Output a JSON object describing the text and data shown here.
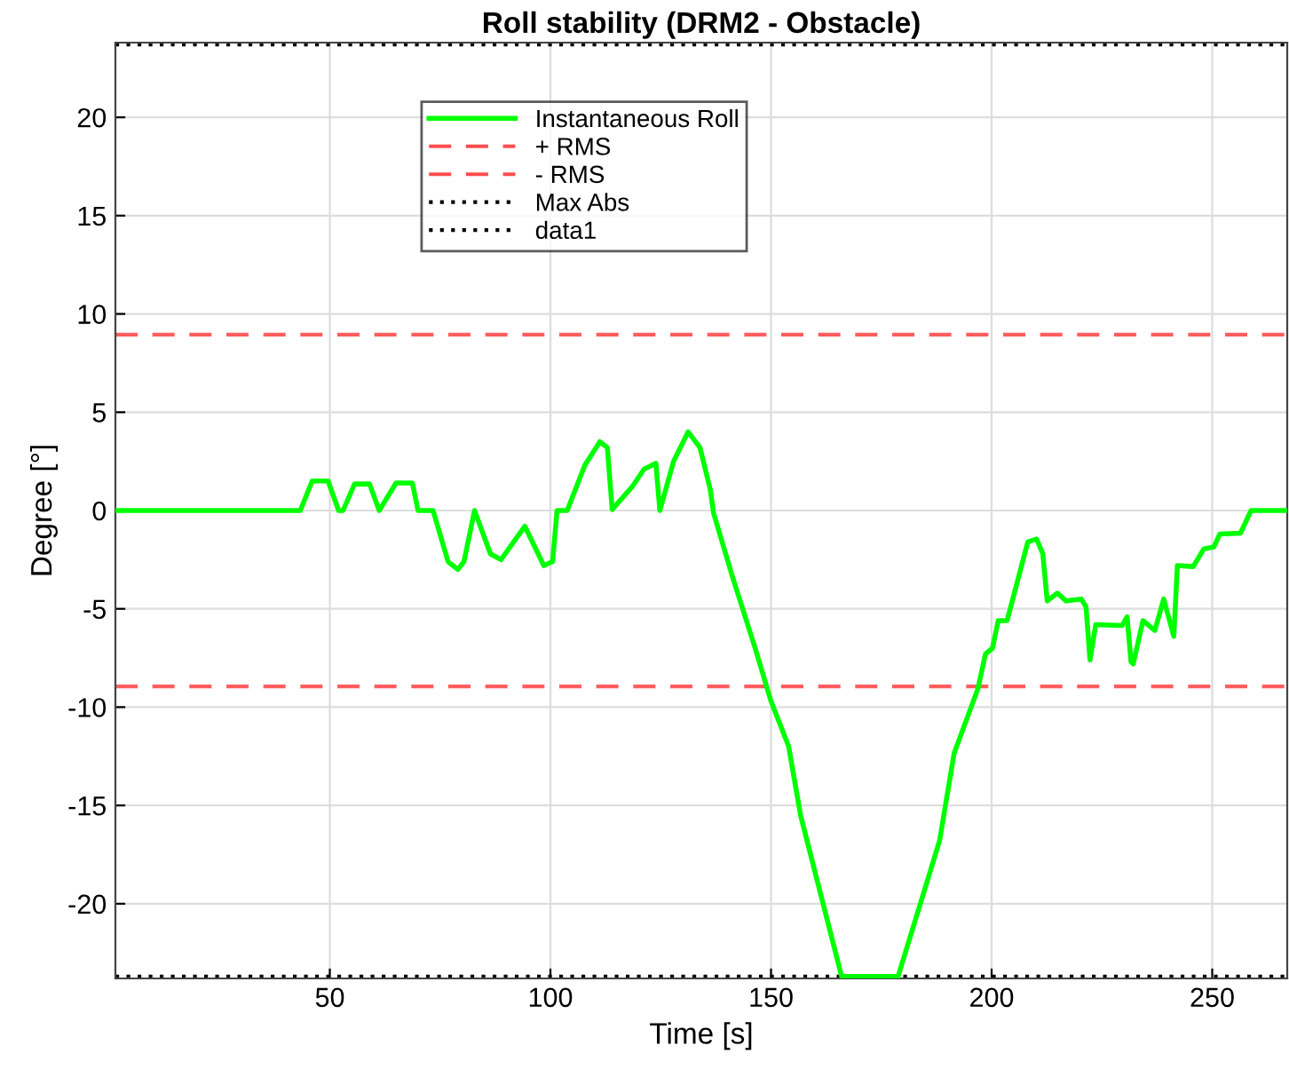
{
  "chart_data": {
    "type": "line",
    "title": "Roll stability (DRM2 - Obstacle)",
    "xlabel": "Time [s]",
    "ylabel": "Degree [°]",
    "x": [
      1.4,
      43.3,
      46,
      49.6,
      52,
      53,
      55.6,
      59,
      61.2,
      65,
      68.7,
      70,
      73.4,
      76.8,
      79,
      80.4,
      82.8,
      86.4,
      88.8,
      94.2,
      98.5,
      100.5,
      101.5,
      103.8,
      107.8,
      111.2,
      112.9,
      114,
      118.5,
      121.2,
      123.9,
      124.8,
      127.9,
      131.2,
      133.9,
      136.2,
      137,
      141.3,
      146.4,
      150,
      154,
      156.7,
      166,
      178.8,
      188.2,
      191.5,
      196.9,
      198.6,
      200.2,
      201.5,
      203.5,
      208.2,
      210.2,
      211.6,
      212.6,
      214.9,
      216.9,
      220.3,
      221.4,
      222.3,
      223.6,
      229.6,
      230.7,
      231.6,
      232.1,
      234.3,
      237,
      239,
      241.3,
      242.1,
      245.7,
      248.1,
      250.4,
      251.7,
      256.4,
      258.8,
      267
    ],
    "series": [
      {
        "name": "Instantaneous Roll",
        "color": "#00ff00",
        "values": [
          0,
          0,
          1.5,
          1.5,
          0,
          0,
          1.35,
          1.35,
          0,
          1.4,
          1.4,
          0,
          0,
          -2.6,
          -3.0,
          -2.6,
          0,
          -2.2,
          -2.5,
          -0.8,
          -2.8,
          -2.6,
          0,
          0,
          2.3,
          3.5,
          3.2,
          0.05,
          1.2,
          2.1,
          2.4,
          0,
          2.5,
          4.0,
          3.2,
          1.1,
          -0.15,
          -3.4,
          -7.0,
          -9.7,
          -12.0,
          -15.5,
          -23.7,
          -23.7,
          -16.8,
          -12.35,
          -9.06,
          -7.3,
          -7.0,
          -5.6,
          -5.6,
          -1.6,
          -1.45,
          -2.2,
          -4.6,
          -4.2,
          -4.6,
          -4.5,
          -4.9,
          -7.6,
          -5.8,
          -5.85,
          -5.4,
          -7.7,
          -7.8,
          -5.6,
          -6.1,
          -4.5,
          -6.4,
          -2.8,
          -2.85,
          -1.95,
          -1.85,
          -1.2,
          -1.15,
          0,
          0
        ]
      }
    ],
    "ref_lines": [
      {
        "axis": "y",
        "value": 8.95,
        "label": "+ RMS",
        "color": "#ff4d4d",
        "line_style": "dashed"
      },
      {
        "axis": "y",
        "value": -8.95,
        "label": "- RMS",
        "color": "#ff4d4d",
        "line_style": "dashed"
      },
      {
        "axis": "y",
        "value": 23.7,
        "label": "Max Abs",
        "color": "#000000",
        "line_style": "dotted"
      },
      {
        "axis": "y",
        "value": -23.7,
        "label": "data1",
        "color": "#000000",
        "line_style": "dotted"
      }
    ],
    "xlim": [
      1.4,
      267
    ],
    "xticks": [
      50,
      100,
      150,
      200,
      250
    ],
    "ylim": [
      -23.8,
      23.8
    ],
    "yticks": [
      -20,
      -15,
      -10,
      -5,
      0,
      5,
      10,
      15,
      20
    ],
    "grid": true,
    "legend": "top",
    "line_style": "solid",
    "marker": "none"
  }
}
